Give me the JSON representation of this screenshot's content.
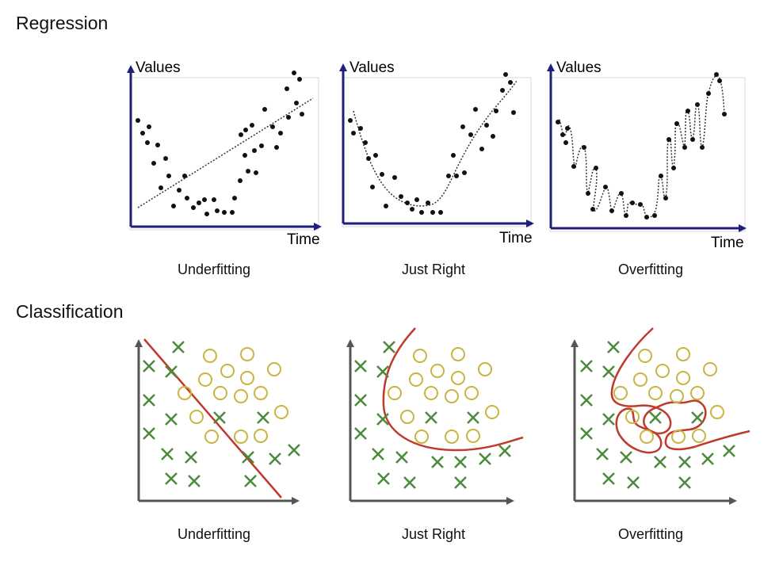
{
  "sections": {
    "regression": {
      "title": "Regression"
    },
    "classification": {
      "title": "Classification"
    }
  },
  "regression": {
    "y_axis_label": "Values",
    "x_axis_label": "Time",
    "panels": [
      {
        "label": "Underfitting"
      },
      {
        "label": "Just Right"
      },
      {
        "label": "Overfitting"
      }
    ]
  },
  "classification": {
    "panels": [
      {
        "label": "Underfitting"
      },
      {
        "label": "Just Right"
      },
      {
        "label": "Overfitting"
      }
    ]
  },
  "colors": {
    "axis_regression": "#1f1f7a",
    "axis_classification": "#555555",
    "points": "#111111",
    "x_marks": "#4a8a3a",
    "o_marks": "#c8b440",
    "boundary": "#c0392b"
  }
}
